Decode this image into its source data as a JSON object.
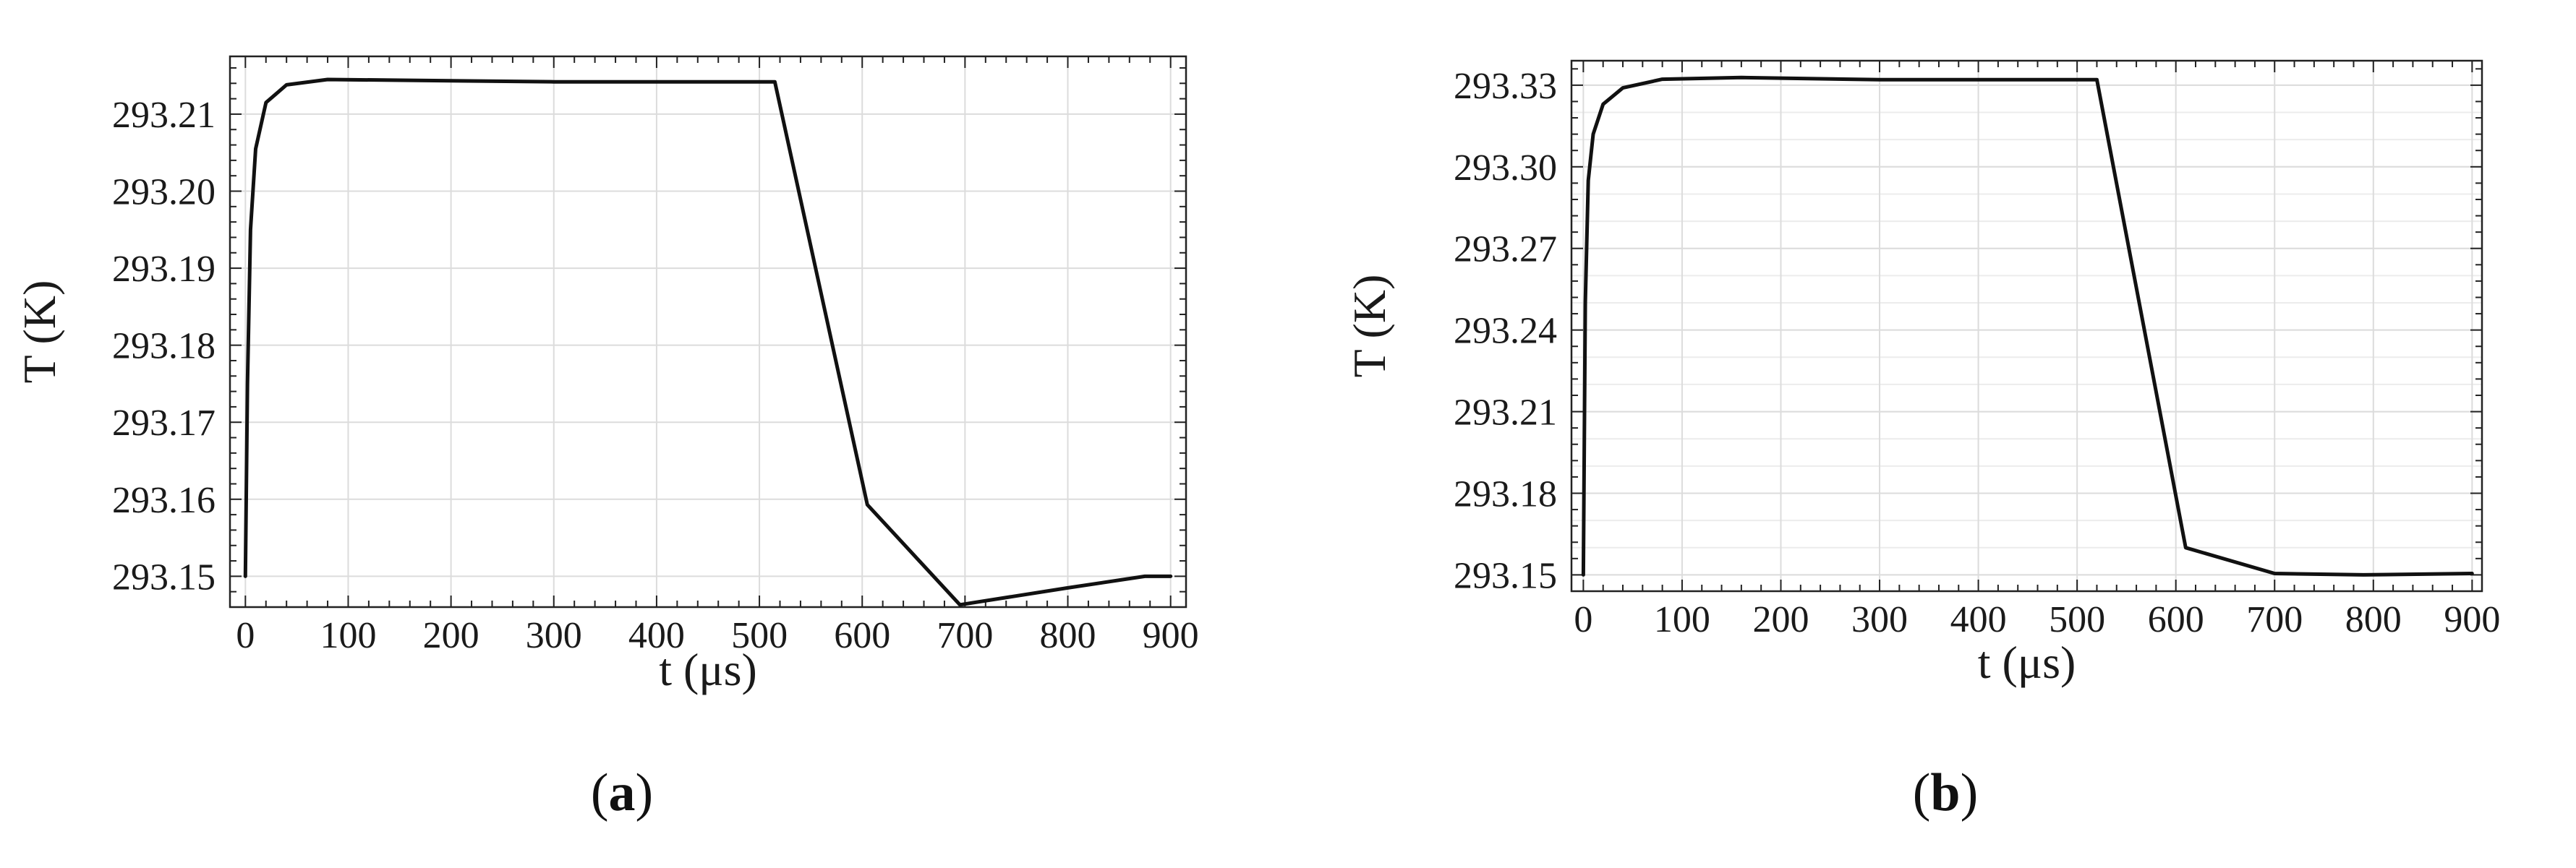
{
  "chart_data": [
    {
      "type": "line",
      "panel_label": "a",
      "xlabel": "t (μs)",
      "ylabel": "T (K)",
      "xlim": [
        -15,
        915
      ],
      "ylim": [
        293.146,
        293.2175
      ],
      "xticks": [
        0,
        100,
        200,
        300,
        400,
        500,
        600,
        700,
        800,
        900
      ],
      "yticks": [
        293.15,
        293.16,
        293.17,
        293.18,
        293.19,
        293.2,
        293.21
      ],
      "ytick_labels": [
        "293.15",
        "293.16",
        "293.17",
        "293.18",
        "293.19",
        "293.20",
        "293.21"
      ],
      "grid": true,
      "series": [
        {
          "color": "#111111",
          "x": [
            0,
            2,
            5,
            10,
            20,
            40,
            80,
            150,
            300,
            450,
            515,
            605,
            695,
            800,
            875,
            900
          ],
          "y": [
            293.15,
            293.175,
            293.195,
            293.2055,
            293.2115,
            293.2138,
            293.2145,
            293.2144,
            293.2142,
            293.2142,
            293.2142,
            293.1593,
            293.1463,
            293.1485,
            293.15,
            293.15
          ]
        }
      ]
    },
    {
      "type": "line",
      "panel_label": "b",
      "xlabel": "t (μs)",
      "ylabel": "T (K)",
      "xlim": [
        -12,
        910
      ],
      "ylim": [
        293.144,
        293.339
      ],
      "xticks": [
        0,
        100,
        200,
        300,
        400,
        500,
        600,
        700,
        800,
        900
      ],
      "yticks": [
        293.15,
        293.18,
        293.21,
        293.24,
        293.27,
        293.3,
        293.33
      ],
      "ytick_labels": [
        "293.15",
        "293.18",
        "293.21",
        "293.24",
        "293.27",
        "293.30",
        "293.33"
      ],
      "grid": true,
      "series": [
        {
          "color": "#111111",
          "x": [
            0,
            2,
            5,
            10,
            20,
            40,
            80,
            160,
            300,
            450,
            520,
            610,
            700,
            790,
            900
          ],
          "y": [
            293.15,
            293.25,
            293.295,
            293.312,
            293.323,
            293.329,
            293.3322,
            293.3328,
            293.332,
            293.332,
            293.332,
            293.16,
            293.1505,
            293.15,
            293.1505
          ]
        }
      ]
    }
  ]
}
